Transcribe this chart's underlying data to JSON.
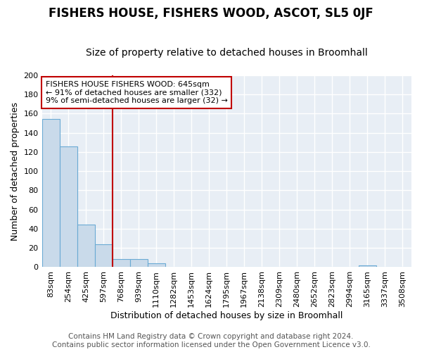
{
  "title": "FISHERS HOUSE, FISHERS WOOD, ASCOT, SL5 0JF",
  "subtitle": "Size of property relative to detached houses in Broomhall",
  "xlabel": "Distribution of detached houses by size in Broomhall",
  "ylabel": "Number of detached properties",
  "categories": [
    "83sqm",
    "254sqm",
    "425sqm",
    "597sqm",
    "768sqm",
    "939sqm",
    "1110sqm",
    "1282sqm",
    "1453sqm",
    "1624sqm",
    "1795sqm",
    "1967sqm",
    "2138sqm",
    "2309sqm",
    "2480sqm",
    "2652sqm",
    "2823sqm",
    "2994sqm",
    "3165sqm",
    "3337sqm",
    "3508sqm"
  ],
  "values": [
    154,
    126,
    44,
    24,
    8,
    8,
    4,
    0,
    0,
    0,
    0,
    0,
    0,
    0,
    0,
    0,
    0,
    0,
    2,
    0,
    0
  ],
  "bar_color": "#c9daea",
  "bar_edge_color": "#6aaad4",
  "bg_color": "#e8eef5",
  "grid_color": "#ffffff",
  "vline_x": 3.5,
  "vline_color": "#c00000",
  "annotation_text": "FISHERS HOUSE FISHERS WOOD: 645sqm\n← 91% of detached houses are smaller (332)\n9% of semi-detached houses are larger (32) →",
  "annotation_box_color": "#ffffff",
  "annotation_box_edge": "#c00000",
  "ylim": [
    0,
    200
  ],
  "yticks": [
    0,
    20,
    40,
    60,
    80,
    100,
    120,
    140,
    160,
    180,
    200
  ],
  "title_fontsize": 12,
  "subtitle_fontsize": 10,
  "axis_label_fontsize": 9,
  "tick_fontsize": 8,
  "annotation_fontsize": 8,
  "footer_line1": "Contains HM Land Registry data © Crown copyright and database right 2024.",
  "footer_line2": "Contains public sector information licensed under the Open Government Licence v3.0.",
  "footer_fontsize": 7.5
}
